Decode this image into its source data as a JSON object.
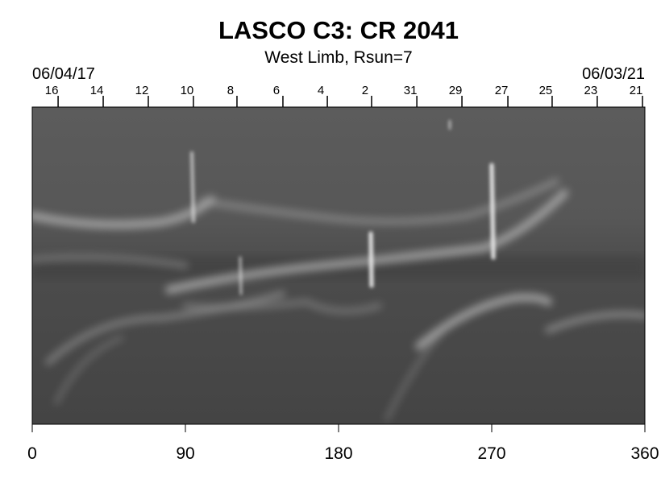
{
  "chart_data": {
    "type": "image",
    "title": "LASCO C3: CR 2041",
    "subtitle": "West Limb, Rsun=7",
    "xlim": [
      0,
      360
    ],
    "xticks": [
      0,
      90,
      180,
      270,
      360
    ],
    "top_axis": {
      "start_label": "06/04/17",
      "end_label": "06/03/21",
      "ticks": [
        {
          "value": 15.2,
          "label": "16"
        },
        {
          "value": 41.7,
          "label": "14"
        },
        {
          "value": 68.2,
          "label": "12"
        },
        {
          "value": 94.7,
          "label": "10"
        },
        {
          "value": 120.3,
          "label": "8"
        },
        {
          "value": 147.3,
          "label": "6"
        },
        {
          "value": 173.4,
          "label": "4"
        },
        {
          "value": 199.4,
          "label": "2"
        },
        {
          "value": 226,
          "label": "31"
        },
        {
          "value": 252.5,
          "label": "29"
        },
        {
          "value": 279.5,
          "label": "27"
        },
        {
          "value": 305.5,
          "label": "25"
        },
        {
          "value": 332,
          "label": "23"
        },
        {
          "value": 358.6,
          "label": "21"
        }
      ]
    }
  }
}
